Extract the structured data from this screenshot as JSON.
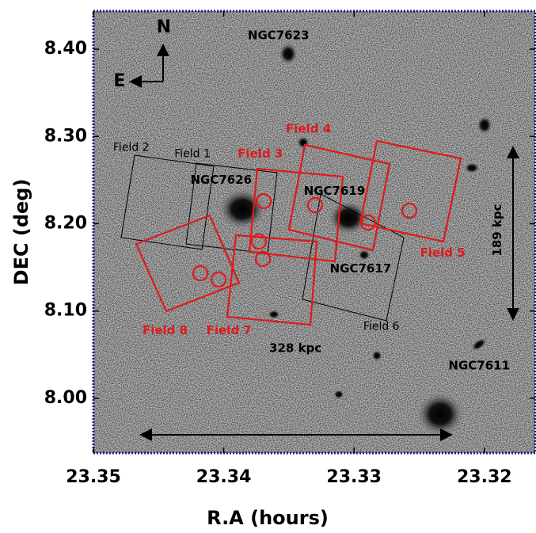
{
  "chart_data": {
    "type": "sky-image",
    "xlabel": "R.A (hours)",
    "ylabel": "DEC (deg)",
    "xlim": [
      23.35,
      23.3161
    ],
    "ylim": [
      7.9373,
      8.4436
    ],
    "xticks": [
      23.35,
      23.34,
      23.33,
      23.32
    ],
    "yticks": [
      {
        "value": 8.4,
        "label": "8.40"
      },
      {
        "value": 8.3,
        "label": "8.30"
      },
      {
        "value": 8.2,
        "label": "8.20"
      },
      {
        "value": 8.1,
        "label": "8.10"
      },
      {
        "value": 8.0,
        "label": "8.00"
      }
    ],
    "annotations": [
      {
        "text": "NGC7623",
        "x": 23.3358,
        "y": 8.4155,
        "color": "#000000",
        "bold": true
      },
      {
        "text": "NGC7626",
        "x": 23.3402,
        "y": 8.25,
        "color": "#000000",
        "bold": true
      },
      {
        "text": "NGC7619",
        "x": 23.3315,
        "y": 8.2373,
        "color": "#000000",
        "bold": true
      },
      {
        "text": "NGC7617",
        "x": 23.3295,
        "y": 8.1482,
        "color": "#000000",
        "bold": true
      },
      {
        "text": "NGC7611",
        "x": 23.3204,
        "y": 8.0373,
        "color": "#000000",
        "bold": true
      },
      {
        "text": "Field 2",
        "x": 23.3471,
        "y": 8.2873,
        "color": "#000000",
        "bold": false
      },
      {
        "text": "Field 1",
        "x": 23.3424,
        "y": 8.28,
        "color": "#000000",
        "bold": false
      },
      {
        "text": "Field 6",
        "x": 23.3279,
        "y": 8.0818,
        "color": "#000000",
        "bold": false
      },
      {
        "text": "Field 4",
        "x": 23.3335,
        "y": 8.3082,
        "color": "#e0191b",
        "bold": true
      },
      {
        "text": "Field 3",
        "x": 23.3372,
        "y": 8.28,
        "color": "#e0191b",
        "bold": true
      },
      {
        "text": "Field 5",
        "x": 23.3232,
        "y": 8.1664,
        "color": "#e0191b",
        "bold": true
      },
      {
        "text": "Field 8",
        "x": 23.3445,
        "y": 8.0773,
        "color": "#e0191b",
        "bold": true
      },
      {
        "text": "Field 7",
        "x": 23.3396,
        "y": 8.0773,
        "color": "#e0191b",
        "bold": true
      },
      {
        "text": "N",
        "x": 23.3446,
        "y": 8.4245,
        "color": "#000000",
        "bold": true
      },
      {
        "text": "E",
        "x": 23.348,
        "y": 8.3627,
        "color": "#000000",
        "bold": true
      },
      {
        "text": "328 kpc",
        "x": 23.3345,
        "y": 8.057,
        "color": "#000000",
        "bold": true
      },
      {
        "text": "189 kpc",
        "x": 23.319,
        "y": 8.1927,
        "color": "#000000",
        "bold": true,
        "rotation": -90
      }
    ]
  }
}
